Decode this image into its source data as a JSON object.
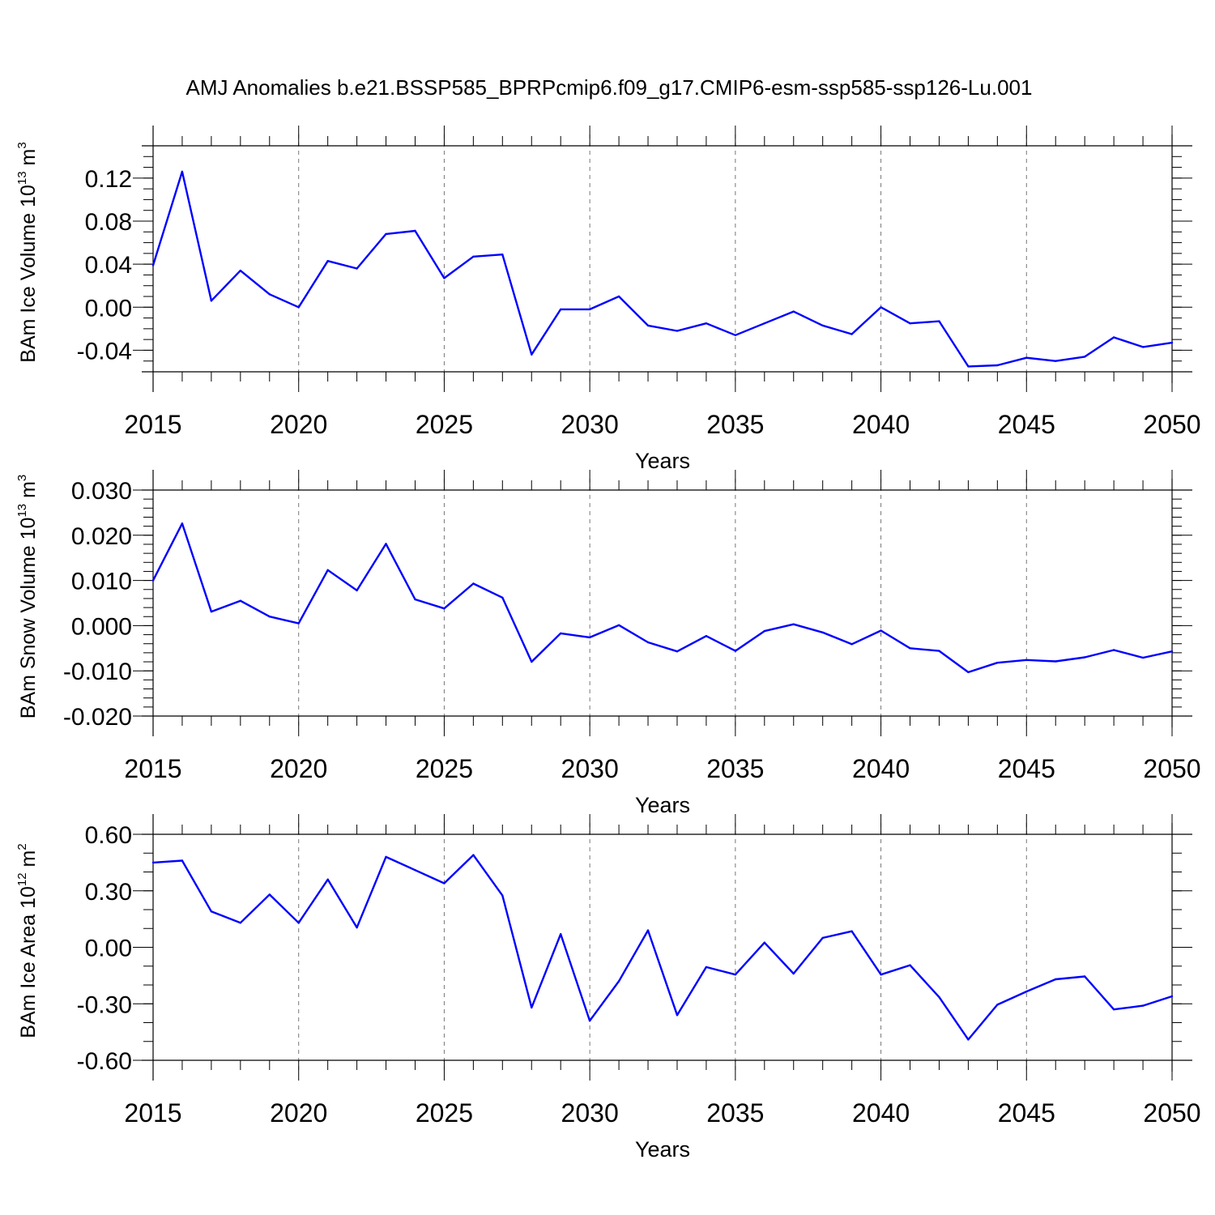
{
  "title": "AMJ Anomalies b.e21.BSSP585_BPRPcmip6.f09_g17.CMIP6-esm-ssp585-ssp126-Lu.001",
  "chart_data": [
    {
      "type": "line",
      "ylabel": {
        "text": "BAm Ice Volume 10",
        "sup": "13",
        "unit": "m",
        "unit_sup": "3"
      },
      "xlabel": "Years",
      "xlim": [
        2015,
        2050
      ],
      "ylim": [
        -0.06,
        0.15
      ],
      "x_ticks": [
        "2015",
        "2020",
        "2025",
        "2030",
        "2035",
        "2040",
        "2045",
        "2050"
      ],
      "y_ticks": [
        "-0.04",
        "0.00",
        "0.04",
        "0.08",
        "0.12"
      ],
      "y_tick_values": [
        -0.04,
        0.0,
        0.04,
        0.08,
        0.12
      ],
      "y_minor_step": 0.01,
      "line_color": "#0000ff",
      "x": [
        2015,
        2016,
        2017,
        2018,
        2019,
        2020,
        2021,
        2022,
        2023,
        2024,
        2025,
        2026,
        2027,
        2028,
        2029,
        2030,
        2031,
        2032,
        2033,
        2034,
        2035,
        2036,
        2037,
        2038,
        2039,
        2040,
        2041,
        2042,
        2043,
        2044,
        2045,
        2046,
        2047,
        2048,
        2049,
        2050
      ],
      "values": [
        0.039,
        0.126,
        0.006,
        0.034,
        0.012,
        0.0,
        0.043,
        0.036,
        0.068,
        0.071,
        0.027,
        0.047,
        0.049,
        -0.044,
        -0.002,
        -0.002,
        0.01,
        -0.017,
        -0.022,
        -0.015,
        -0.026,
        -0.015,
        -0.004,
        -0.017,
        -0.025,
        0.0,
        -0.015,
        -0.013,
        -0.055,
        -0.054,
        -0.047,
        -0.05,
        -0.046,
        -0.028,
        -0.037,
        -0.033
      ]
    },
    {
      "type": "line",
      "ylabel": {
        "text": "BAm Snow Volume 10",
        "sup": "13",
        "unit": "m",
        "unit_sup": "3"
      },
      "xlabel": "Years",
      "xlim": [
        2015,
        2050
      ],
      "ylim": [
        -0.02,
        0.03
      ],
      "x_ticks": [
        "2015",
        "2020",
        "2025",
        "2030",
        "2035",
        "2040",
        "2045",
        "2050"
      ],
      "y_ticks": [
        "-0.020",
        "-0.010",
        "0.000",
        "0.010",
        "0.020",
        "0.030"
      ],
      "y_tick_values": [
        -0.02,
        -0.01,
        0.0,
        0.01,
        0.02,
        0.03
      ],
      "y_minor_step": 0.002,
      "line_color": "#0000ff",
      "x": [
        2015,
        2016,
        2017,
        2018,
        2019,
        2020,
        2021,
        2022,
        2023,
        2024,
        2025,
        2026,
        2027,
        2028,
        2029,
        2030,
        2031,
        2032,
        2033,
        2034,
        2035,
        2036,
        2037,
        2038,
        2039,
        2040,
        2041,
        2042,
        2043,
        2044,
        2045,
        2046,
        2047,
        2048,
        2049,
        2050
      ],
      "values": [
        0.01,
        0.0226,
        0.0031,
        0.0055,
        0.002,
        0.0005,
        0.0123,
        0.0078,
        0.0181,
        0.0058,
        0.0038,
        0.0093,
        0.0062,
        -0.008,
        -0.0017,
        -0.0026,
        0.0001,
        -0.0037,
        -0.0057,
        -0.0023,
        -0.0056,
        -0.0012,
        0.0003,
        -0.0015,
        -0.0041,
        -0.0011,
        -0.005,
        -0.0056,
        -0.0103,
        -0.0082,
        -0.0076,
        -0.0079,
        -0.007,
        -0.0054,
        -0.0071,
        -0.0057
      ]
    },
    {
      "type": "line",
      "ylabel": {
        "text": "BAm Ice Area 10",
        "sup": "12",
        "unit": "m",
        "unit_sup": "2"
      },
      "xlabel": "Years",
      "xlim": [
        2015,
        2050
      ],
      "ylim": [
        -0.6,
        0.6
      ],
      "x_ticks": [
        "2015",
        "2020",
        "2025",
        "2030",
        "2035",
        "2040",
        "2045",
        "2050"
      ],
      "y_ticks": [
        "-0.60",
        "-0.30",
        "0.00",
        "0.30",
        "0.60"
      ],
      "y_tick_values": [
        -0.6,
        -0.3,
        0.0,
        0.3,
        0.6
      ],
      "y_minor_step": 0.1,
      "line_color": "#0000ff",
      "x": [
        2015,
        2016,
        2017,
        2018,
        2019,
        2020,
        2021,
        2022,
        2023,
        2024,
        2025,
        2026,
        2027,
        2028,
        2029,
        2030,
        2031,
        2032,
        2033,
        2034,
        2035,
        2036,
        2037,
        2038,
        2039,
        2040,
        2041,
        2042,
        2043,
        2044,
        2045,
        2046,
        2047,
        2048,
        2049,
        2050
      ],
      "values": [
        0.45,
        0.46,
        0.19,
        0.13,
        0.28,
        0.13,
        0.36,
        0.105,
        0.48,
        0.41,
        0.34,
        0.49,
        0.275,
        -0.32,
        0.07,
        -0.39,
        -0.18,
        0.09,
        -0.36,
        -0.105,
        -0.145,
        0.025,
        -0.14,
        0.05,
        0.085,
        -0.145,
        -0.095,
        -0.265,
        -0.49,
        -0.305,
        -0.235,
        -0.17,
        -0.155,
        -0.33,
        -0.31,
        -0.26
      ]
    }
  ]
}
